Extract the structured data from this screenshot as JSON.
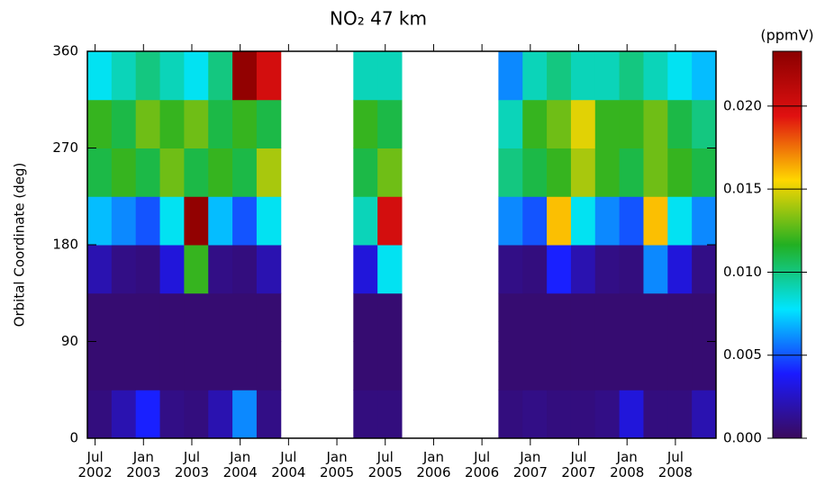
{
  "chart_data": {
    "type": "heatmap",
    "title": "NO₂ 47 km",
    "ylabel": "Orbital Coordinate (deg)",
    "colorbar_label": "(ppmV)",
    "xlim": [
      2002.42,
      2008.92
    ],
    "ylim": [
      0,
      360
    ],
    "xticks": [
      {
        "value": 2002.5,
        "label": "Jul 2002"
      },
      {
        "value": 2003.0,
        "label": "Jan 2003"
      },
      {
        "value": 2003.5,
        "label": "Jul 2003"
      },
      {
        "value": 2004.0,
        "label": "Jan 2004"
      },
      {
        "value": 2004.5,
        "label": "Jul 2004"
      },
      {
        "value": 2005.0,
        "label": "Jan 2005"
      },
      {
        "value": 2005.5,
        "label": "Jul 2005"
      },
      {
        "value": 2006.0,
        "label": "Jan 2006"
      },
      {
        "value": 2006.5,
        "label": "Jul 2006"
      },
      {
        "value": 2007.0,
        "label": "Jan 2007"
      },
      {
        "value": 2007.5,
        "label": "Jul 2007"
      },
      {
        "value": 2008.0,
        "label": "Jan 2008"
      },
      {
        "value": 2008.5,
        "label": "Jul 2008"
      }
    ],
    "yticks": [
      0,
      90,
      180,
      270,
      360
    ],
    "clim": [
      0,
      0.0233
    ],
    "cticks": [
      {
        "value": 0,
        "label": "0.000"
      },
      0.005,
      {
        "value": 0.01,
        "label": "0.010"
      },
      0.015,
      {
        "value": 0.02,
        "label": "0.020"
      }
    ],
    "colormap": [
      "#3a0a5c",
      "#1a1aff",
      "#00e5ff",
      "#22b022",
      "#ffd700",
      "#e01010",
      "#8b0000"
    ],
    "x_bins": [
      2002.42,
      2002.67,
      2002.92,
      2003.17,
      2003.42,
      2003.67,
      2003.92,
      2004.17,
      2004.42,
      2004.67,
      2004.92,
      2005.17,
      2005.42,
      2005.67,
      2005.92,
      2006.17,
      2006.42,
      2006.67,
      2006.92,
      2007.17,
      2007.42,
      2007.67,
      2007.92,
      2008.17,
      2008.42,
      2008.67,
      2008.92
    ],
    "y_bins": [
      0,
      45,
      90,
      135,
      180,
      225,
      270,
      315,
      360
    ],
    "z": [
      [
        0.0008,
        0.002,
        0.004,
        0.001,
        0.0008,
        0.002,
        0.006,
        0.001,
        null,
        null,
        null,
        0.0008,
        0.0008,
        null,
        null,
        null,
        null,
        0.0008,
        0.001,
        0.0008,
        0.0008,
        0.001,
        0.003,
        0.0008,
        0.0008,
        0.002
      ],
      [
        0.0005,
        0.0005,
        0.0005,
        0.0005,
        0.0005,
        0.0005,
        0.0005,
        0.0005,
        null,
        null,
        null,
        0.0005,
        0.0005,
        null,
        null,
        null,
        null,
        0.0005,
        0.0005,
        0.0005,
        0.0005,
        0.0005,
        0.0005,
        0.0005,
        0.0005,
        0.0005
      ],
      [
        0.0005,
        0.0005,
        0.0005,
        0.0005,
        0.0005,
        0.0005,
        0.0005,
        0.0005,
        null,
        null,
        null,
        0.0005,
        0.0005,
        null,
        null,
        null,
        null,
        0.0005,
        0.0005,
        0.0005,
        0.0005,
        0.0005,
        0.0005,
        0.0005,
        0.0005,
        0.0005
      ],
      [
        0.002,
        0.001,
        0.0008,
        0.003,
        0.012,
        0.001,
        0.0008,
        0.002,
        null,
        null,
        null,
        0.003,
        0.008,
        null,
        null,
        null,
        null,
        0.001,
        0.0008,
        0.004,
        0.002,
        0.001,
        0.0008,
        0.006,
        0.003,
        0.001
      ],
      [
        0.007,
        0.006,
        0.005,
        0.008,
        0.023,
        0.007,
        0.005,
        0.008,
        null,
        null,
        null,
        0.009,
        0.02,
        null,
        null,
        null,
        null,
        0.006,
        0.005,
        0.016,
        0.008,
        0.006,
        0.005,
        0.016,
        0.008,
        0.006
      ],
      [
        0.011,
        0.012,
        0.011,
        0.013,
        0.011,
        0.012,
        0.011,
        0.014,
        null,
        null,
        null,
        0.011,
        0.013,
        null,
        null,
        null,
        null,
        0.01,
        0.011,
        0.012,
        0.014,
        0.012,
        0.011,
        0.013,
        0.012,
        0.011
      ],
      [
        0.012,
        0.011,
        0.013,
        0.012,
        0.013,
        0.011,
        0.012,
        0.011,
        null,
        null,
        null,
        0.012,
        0.011,
        null,
        null,
        null,
        null,
        0.009,
        0.012,
        0.013,
        0.015,
        0.012,
        0.012,
        0.013,
        0.011,
        0.01
      ],
      [
        0.008,
        0.009,
        0.01,
        0.009,
        0.008,
        0.01,
        0.023,
        0.02,
        null,
        null,
        null,
        0.009,
        0.009,
        null,
        null,
        null,
        null,
        0.006,
        0.009,
        0.01,
        0.009,
        0.009,
        0.01,
        0.009,
        0.008,
        0.007
      ]
    ]
  }
}
